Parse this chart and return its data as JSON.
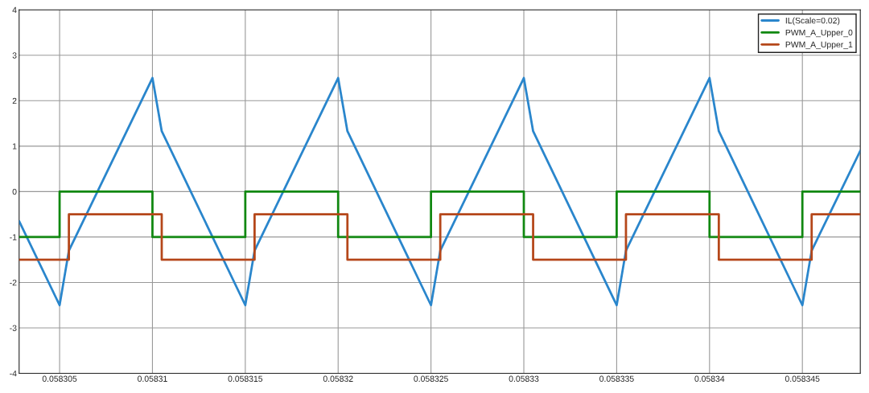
{
  "chart_data": {
    "type": "step",
    "xlim": [
      0.05830282,
      0.05834812
    ],
    "xticks": [
      {
        "value": 0.058305,
        "label": "0.058305"
      },
      {
        "value": 0.05831,
        "label": "0.05831"
      },
      {
        "value": 0.058315,
        "label": "0.058315"
      },
      {
        "value": 0.05832,
        "label": "0.05832"
      },
      {
        "value": 0.058325,
        "label": "0.058325"
      },
      {
        "value": 0.05833,
        "label": "0.05833"
      },
      {
        "value": 0.058335,
        "label": "0.058335"
      },
      {
        "value": 0.05834,
        "label": "0.05834"
      },
      {
        "value": 0.058345,
        "label": "0.058345"
      }
    ],
    "ylim": [
      -4,
      4
    ],
    "yticks": [
      -4,
      -3,
      -2,
      -1,
      0,
      1,
      2,
      3,
      4
    ],
    "grid": true,
    "legend": "top right",
    "line_style": "solid",
    "series": [
      {
        "name": "IL(Scale=0.02)",
        "type": "line",
        "color": "#2a86cc",
        "x": [
          0.05830282,
          0.058305,
          0.0583055,
          0.05831,
          0.0583105,
          0.058315,
          0.0583155,
          0.05832,
          0.0583205,
          0.058325,
          0.0583255,
          0.05833,
          0.0583305,
          0.058335,
          0.0583355,
          0.05834,
          0.0583405,
          0.058345,
          0.0583455,
          0.05834812
        ],
        "values": [
          -0.65,
          -2.5,
          -1.3,
          2.5,
          1.33,
          -2.5,
          -1.3,
          2.5,
          1.33,
          -2.5,
          -1.3,
          2.5,
          1.33,
          -2.5,
          -1.3,
          2.5,
          1.33,
          -2.5,
          -1.3,
          0.9
        ]
      },
      {
        "name": "PWM_A_Upper_0",
        "color": "#118811",
        "x": [
          0.05830282,
          0.058305,
          0.05831,
          0.058315,
          0.05832,
          0.058325,
          0.05833,
          0.058335,
          0.05834,
          0.058345,
          0.05834812
        ],
        "values": [
          -1,
          0,
          -1,
          0,
          -1,
          0,
          -1,
          0,
          -1,
          0,
          0
        ]
      },
      {
        "name": "PWM_A_Upper_1",
        "color": "#b5471a",
        "x": [
          0.05830282,
          0.0583055,
          0.0583105,
          0.0583155,
          0.0583205,
          0.0583255,
          0.0583305,
          0.0583355,
          0.0583405,
          0.0583455,
          0.05834812
        ],
        "values": [
          -1.5,
          -0.5,
          -1.5,
          -0.5,
          -1.5,
          -0.5,
          -1.5,
          -0.5,
          -1.5,
          -0.5,
          -0.5
        ]
      }
    ]
  }
}
